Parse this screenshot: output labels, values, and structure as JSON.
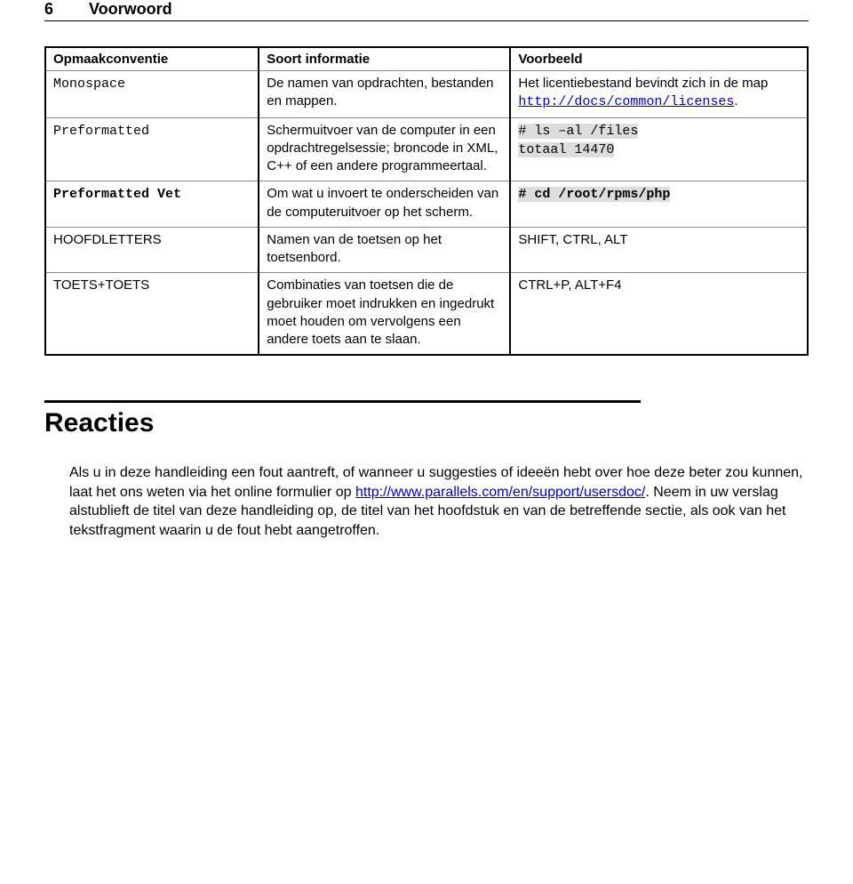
{
  "header": {
    "page_num": "6",
    "section_title": "Voorwoord"
  },
  "table": {
    "headers": [
      "Opmaakconventie",
      "Soort informatie",
      "Voorbeeld"
    ],
    "rows": [
      {
        "c1": "Monospace",
        "c2": "De namen van opdrachten, bestanden en mappen.",
        "c3_pre": "Het licentiebestand bevindt zich in de map ",
        "c3_link": "http://docs/common/licenses",
        "c3_post": "."
      },
      {
        "c1": "Preformatted",
        "c2": "Schermuitvoer van de computer in een opdrachtregelsessie; broncode in XML, C++ of een andere programmeertaal.",
        "c3_code1": "# ls –al /files",
        "c3_code2": "totaal 14470"
      },
      {
        "c1": "Preformatted Vet",
        "c2": "Om wat u invoert te onderscheiden van de computeruitvoer op het scherm.",
        "c3_code": "# cd /root/rpms/php"
      },
      {
        "c1": "HOOFDLETTERS",
        "c2": "Namen van de toetsen op het toetsenbord.",
        "c3": "SHIFT, CTRL, ALT"
      },
      {
        "c1": "TOETS+TOETS",
        "c2": "Combinaties van toetsen die de gebruiker moet indrukken en ingedrukt moet houden om vervolgens een andere toets aan te slaan.",
        "c3": "CTRL+P, ALT+F4"
      }
    ]
  },
  "section2": {
    "heading": "Reacties",
    "p_part1": "Als u in deze handleiding een fout aantreft, of wanneer u suggesties of ideeën hebt over hoe deze beter zou kunnen, laat het ons weten via het online formulier op ",
    "p_link": "http://www.parallels.com/en/support/usersdoc/",
    "p_part2": ". Neem in uw verslag alstublieft de titel van deze handleiding op, de titel van het hoofdstuk en van de betreffende sectie, als ook van het tekstfragment waarin u de fout hebt aangetroffen."
  }
}
